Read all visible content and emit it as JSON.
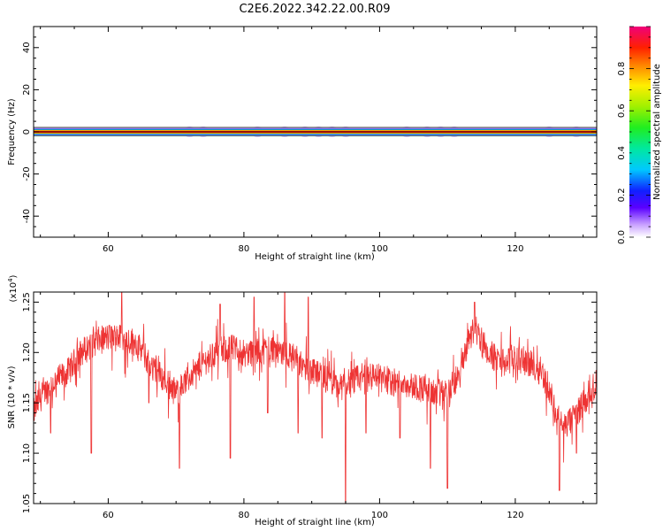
{
  "title": "C2E6.2022.342.22.00.R09",
  "chart_data": [
    {
      "type": "heatmap",
      "xlabel": "Height of straight line (km)",
      "ylabel": "Frequency (Hz)",
      "xlim": [
        49,
        132
      ],
      "ylim": [
        -50,
        50
      ],
      "xticks": [
        "60",
        "80",
        "100",
        "120"
      ],
      "yticks": [
        "-40",
        "-20",
        "0",
        "20",
        "40"
      ],
      "line_y": 0,
      "activity_clusters_x": [
        72,
        74,
        82,
        86,
        89,
        91,
        93,
        95,
        104,
        107,
        109,
        111,
        125,
        129
      ],
      "colorbar": {
        "label": "Normalized spectral amplitude",
        "range": [
          0,
          1
        ],
        "ticks": [
          "0.0",
          "0.2",
          "0.4",
          "0.6",
          "0.8"
        ]
      }
    },
    {
      "type": "line",
      "xlabel": "Height of straight line (km)",
      "ylabel": "SNR (10 * v/v)",
      "exponent_label": "(x10",
      "exponent_power": "4",
      "exponent_close": ")",
      "xlim": [
        49,
        132
      ],
      "ylim": [
        1.05,
        1.26
      ],
      "xticks": [
        "60",
        "80",
        "100",
        "120"
      ],
      "yticks": [
        "1.05",
        "1.10",
        "1.15",
        "1.20",
        "1.25"
      ],
      "line_color": "#ee3333",
      "series": [
        {
          "x": [
            49,
            50,
            52,
            54,
            56,
            58,
            60,
            62,
            64,
            66,
            68,
            70,
            72,
            74,
            76,
            78,
            80,
            82,
            84,
            86,
            88,
            90,
            92,
            94,
            96,
            98,
            100,
            102,
            104,
            106,
            108,
            110,
            112,
            113,
            114,
            116,
            118,
            120,
            122,
            124,
            126,
            127,
            128,
            130,
            132
          ],
          "values": [
            1.14,
            1.155,
            1.17,
            1.18,
            1.2,
            1.21,
            1.215,
            1.215,
            1.21,
            1.19,
            1.175,
            1.16,
            1.175,
            1.19,
            1.2,
            1.205,
            1.2,
            1.2,
            1.205,
            1.2,
            1.19,
            1.18,
            1.175,
            1.165,
            1.17,
            1.18,
            1.175,
            1.17,
            1.17,
            1.165,
            1.16,
            1.16,
            1.18,
            1.21,
            1.225,
            1.2,
            1.19,
            1.195,
            1.19,
            1.18,
            1.14,
            1.125,
            1.13,
            1.15,
            1.17
          ]
        }
      ],
      "dips": [
        {
          "x": 51.5,
          "y": 1.12
        },
        {
          "x": 57.5,
          "y": 1.1
        },
        {
          "x": 66.0,
          "y": 1.15
        },
        {
          "x": 70.5,
          "y": 1.085
        },
        {
          "x": 78.0,
          "y": 1.095
        },
        {
          "x": 83.5,
          "y": 1.14
        },
        {
          "x": 88.0,
          "y": 1.12
        },
        {
          "x": 91.5,
          "y": 1.115
        },
        {
          "x": 95.0,
          "y": 1.05
        },
        {
          "x": 98.0,
          "y": 1.12
        },
        {
          "x": 103.0,
          "y": 1.115
        },
        {
          "x": 107.5,
          "y": 1.085
        },
        {
          "x": 110.0,
          "y": 1.065
        },
        {
          "x": 126.5,
          "y": 1.063
        },
        {
          "x": 129.0,
          "y": 1.1
        }
      ],
      "peaks": [
        {
          "x": 62.0,
          "y": 1.26
        },
        {
          "x": 76.5,
          "y": 1.248
        },
        {
          "x": 81.5,
          "y": 1.255
        },
        {
          "x": 86.0,
          "y": 1.26
        },
        {
          "x": 89.5,
          "y": 1.255
        },
        {
          "x": 114.0,
          "y": 1.25
        }
      ]
    }
  ]
}
